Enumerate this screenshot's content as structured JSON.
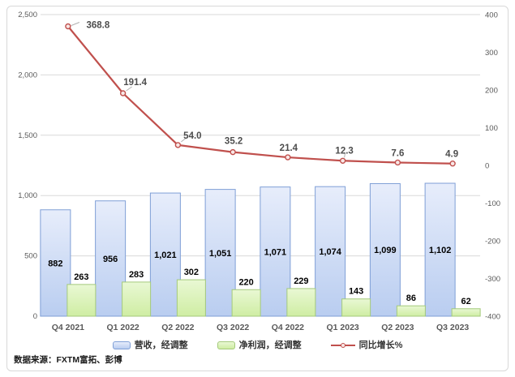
{
  "chart_data": {
    "type": "combo",
    "title": "",
    "categories": [
      "Q4 2021",
      "Q1 2022",
      "Q2 2022",
      "Q3 2022",
      "Q4 2022",
      "Q1 2023",
      "Q2 2023",
      "Q3 2023"
    ],
    "series": [
      {
        "name": "营收，经调整",
        "type": "bar",
        "axis": "left",
        "values": [
          882,
          956,
          1021,
          1051,
          1071,
          1074,
          1099,
          1102
        ]
      },
      {
        "name": "净利润，经调整",
        "type": "bar",
        "axis": "left",
        "values": [
          263,
          283,
          302,
          220,
          229,
          143,
          86,
          62
        ]
      },
      {
        "name": "同比增长%",
        "type": "line",
        "axis": "right",
        "values": [
          368.8,
          191.4,
          54.0,
          35.2,
          21.4,
          12.3,
          7.6,
          4.9
        ]
      }
    ],
    "left_axis": {
      "min": 0,
      "max": 2500,
      "step": 500,
      "ticks": [
        "0",
        "500",
        "1,000",
        "1,500",
        "2,000",
        "2,500"
      ]
    },
    "right_axis": {
      "min": -400,
      "max": 400,
      "step": 100,
      "ticks": [
        "-400",
        "-300",
        "-200",
        "-100",
        "0",
        "100",
        "200",
        "300",
        "400"
      ]
    },
    "grid": true,
    "legend_position": "bottom"
  },
  "legend": {
    "items": [
      {
        "label": "营收，经调整",
        "swatch": "blue-bar"
      },
      {
        "label": "净利润，经调整",
        "swatch": "green-bar"
      },
      {
        "label": "同比增长%",
        "swatch": "red-line"
      }
    ]
  },
  "source_note": "数据来源：FXTM富拓、彭博",
  "colors": {
    "bar_blue_fill_top": "#e7edfb",
    "bar_blue_fill_bottom": "#b9cdf0",
    "bar_blue_border": "#7f9fd6",
    "bar_green_fill_top": "#e9f8d4",
    "bar_green_fill_bottom": "#cfeda3",
    "bar_green_border": "#a4c97b",
    "line_red": "#c0504d",
    "gridline": "#d9d9d9",
    "axis_text": "#595959",
    "bar_label_text": "#000000",
    "line_label_text": "#4d4d4d"
  }
}
